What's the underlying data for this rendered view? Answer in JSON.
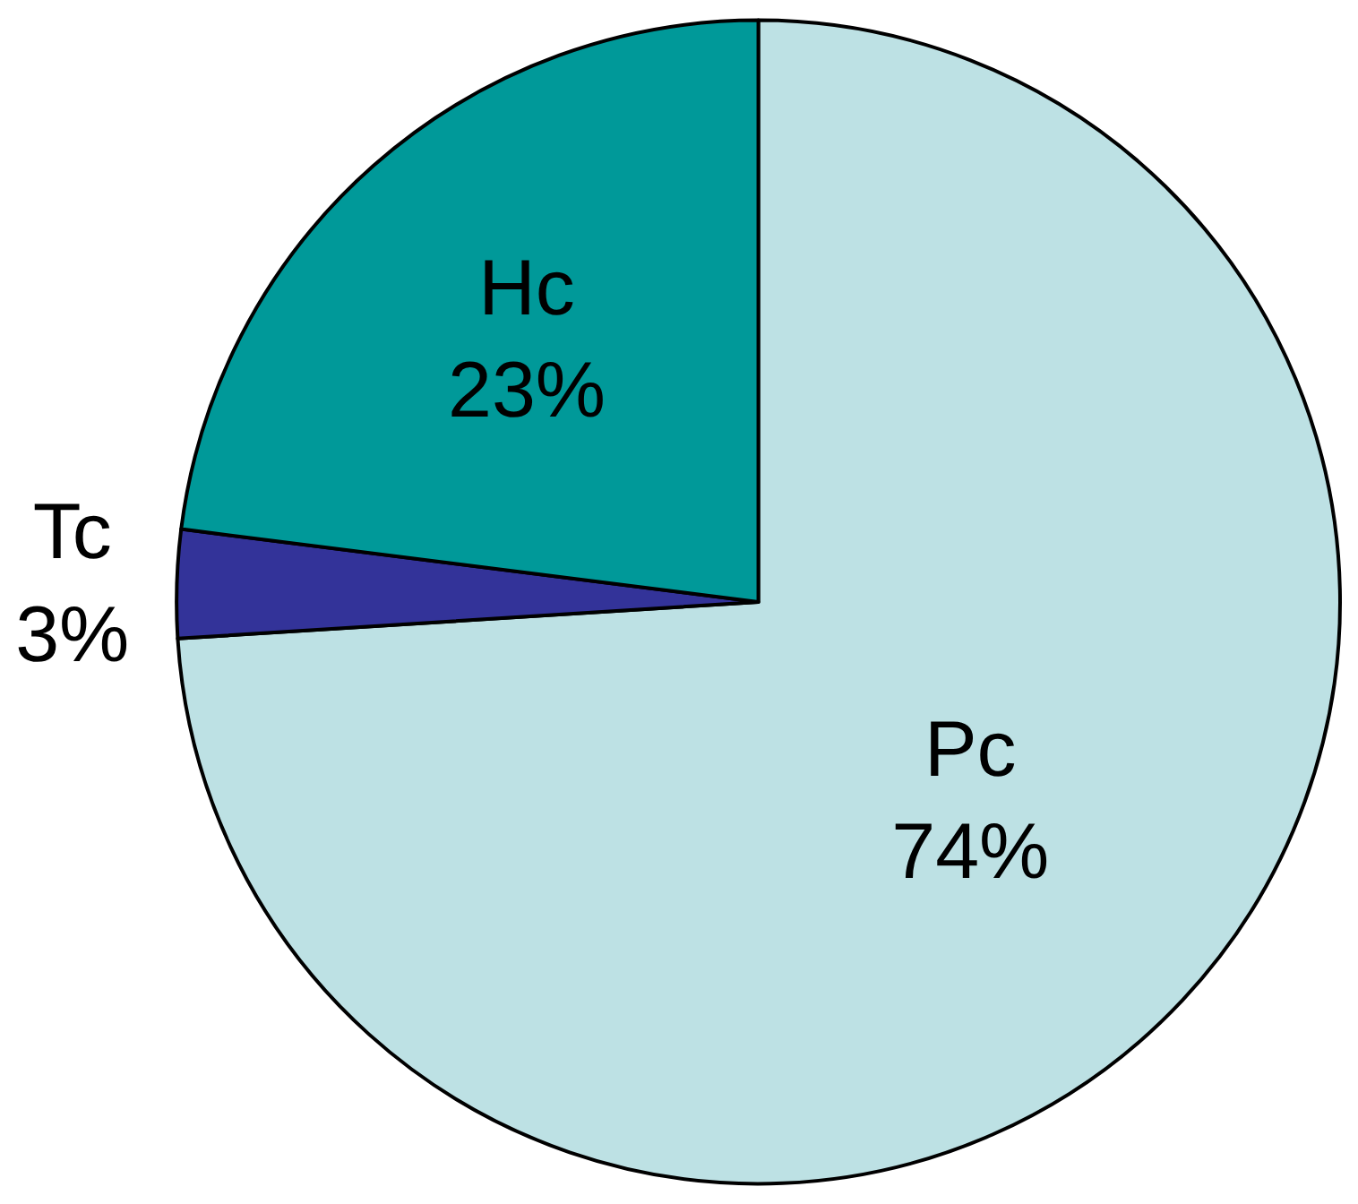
{
  "chart_data": {
    "type": "pie",
    "categories": [
      "Pc",
      "Tc",
      "Hc"
    ],
    "values": [
      74,
      3,
      23
    ],
    "value_labels": [
      "74%",
      "3%",
      "23%"
    ],
    "colors": [
      "#bde1e4",
      "#333399",
      "#009999"
    ],
    "legend": false
  }
}
